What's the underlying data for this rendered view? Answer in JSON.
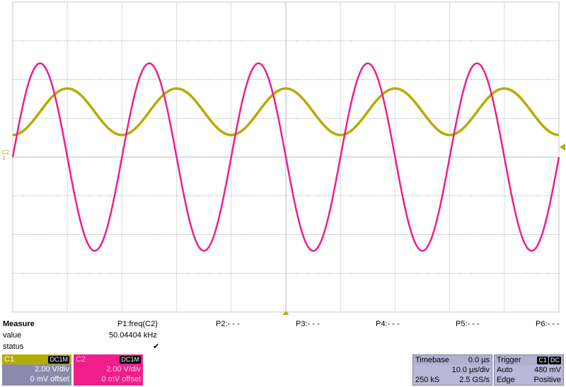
{
  "channels": [
    {
      "id": "C1",
      "coupling": "DC1M",
      "vdiv": "2.00 V/div",
      "offset": "0 mV offset",
      "color": "#b4ac00",
      "label_color": "#ffffff"
    },
    {
      "id": "C2",
      "coupling": "DC1M",
      "vdiv": "2.00 V/div",
      "offset": "0 mV offset",
      "color": "#ef1e8c",
      "label_color": "#ffffff"
    }
  ],
  "markers": {
    "left_label": "C2",
    "left_sublabel": "1"
  },
  "measure": {
    "title": "Measure",
    "row_value": "value",
    "row_status": "status",
    "params": [
      {
        "name": "P1:freq(C2)",
        "value": "50.04404 kHz",
        "status": "✔"
      },
      {
        "name": "P2:- - -",
        "value": "",
        "status": ""
      },
      {
        "name": "P3:- - -",
        "value": "",
        "status": ""
      },
      {
        "name": "P4:- - -",
        "value": "",
        "status": ""
      },
      {
        "name": "P5:- - -",
        "value": "",
        "status": ""
      },
      {
        "name": "P6:- - -",
        "value": "",
        "status": ""
      }
    ]
  },
  "timebase": {
    "title": "Timebase",
    "delay": "0.0 µs",
    "tdiv": "10.0 µs/div",
    "samples": "250 kS",
    "rate": "2.5 GS/s"
  },
  "trigger": {
    "title": "Trigger",
    "src_tag": "C1",
    "coupling_tag": "DC",
    "mode": "Auto",
    "level": "480 mV",
    "type": "Edge",
    "slope": "Positive"
  },
  "waveforms": {
    "c2": {
      "period_us": 20,
      "amplitude_div": 2.42,
      "phase_deg": 0
    },
    "c1": {
      "period_us": 20,
      "amplitude_div": 0.6,
      "center_div": 1.17,
      "phase_deg": -90
    }
  }
}
